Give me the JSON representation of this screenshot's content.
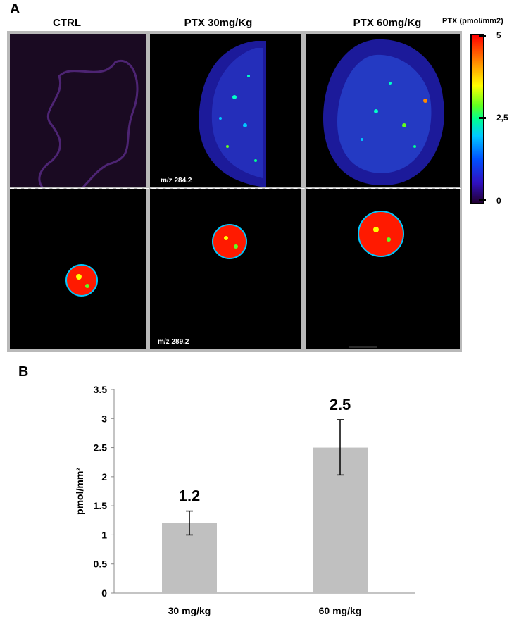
{
  "panel_a": {
    "letter": "A",
    "columns": [
      "CTRL",
      "PTX 30mg/Kg",
      "PTX 60mg/Kg"
    ],
    "mz_top": "m/z 284.2",
    "mz_bottom": "m/z 289.2",
    "colorbar": {
      "title": "PTX (pmol/mm2)",
      "ticks": [
        "5",
        "2,5",
        "0"
      ],
      "colors": [
        "#ff0000",
        "#ffff00",
        "#00ff90",
        "#00c8ff",
        "#0050ff",
        "#220033"
      ]
    }
  },
  "panel_b": {
    "letter": "B"
  },
  "chart_data": {
    "type": "bar",
    "categories": [
      "30 mg/kg",
      "60 mg/kg"
    ],
    "values": [
      1.2,
      2.5
    ],
    "error_low": [
      1.0,
      2.03
    ],
    "error_high": [
      1.41,
      2.98
    ],
    "value_labels": [
      "1.2",
      "2.5"
    ],
    "ylabel": "pmol/mm²",
    "ylim": [
      0,
      3.5
    ],
    "yticks": [
      "0",
      "0.5",
      "1",
      "1.5",
      "2",
      "2.5",
      "3",
      "3.5"
    ],
    "bar_color": "#c0c0c0",
    "grid": false
  }
}
